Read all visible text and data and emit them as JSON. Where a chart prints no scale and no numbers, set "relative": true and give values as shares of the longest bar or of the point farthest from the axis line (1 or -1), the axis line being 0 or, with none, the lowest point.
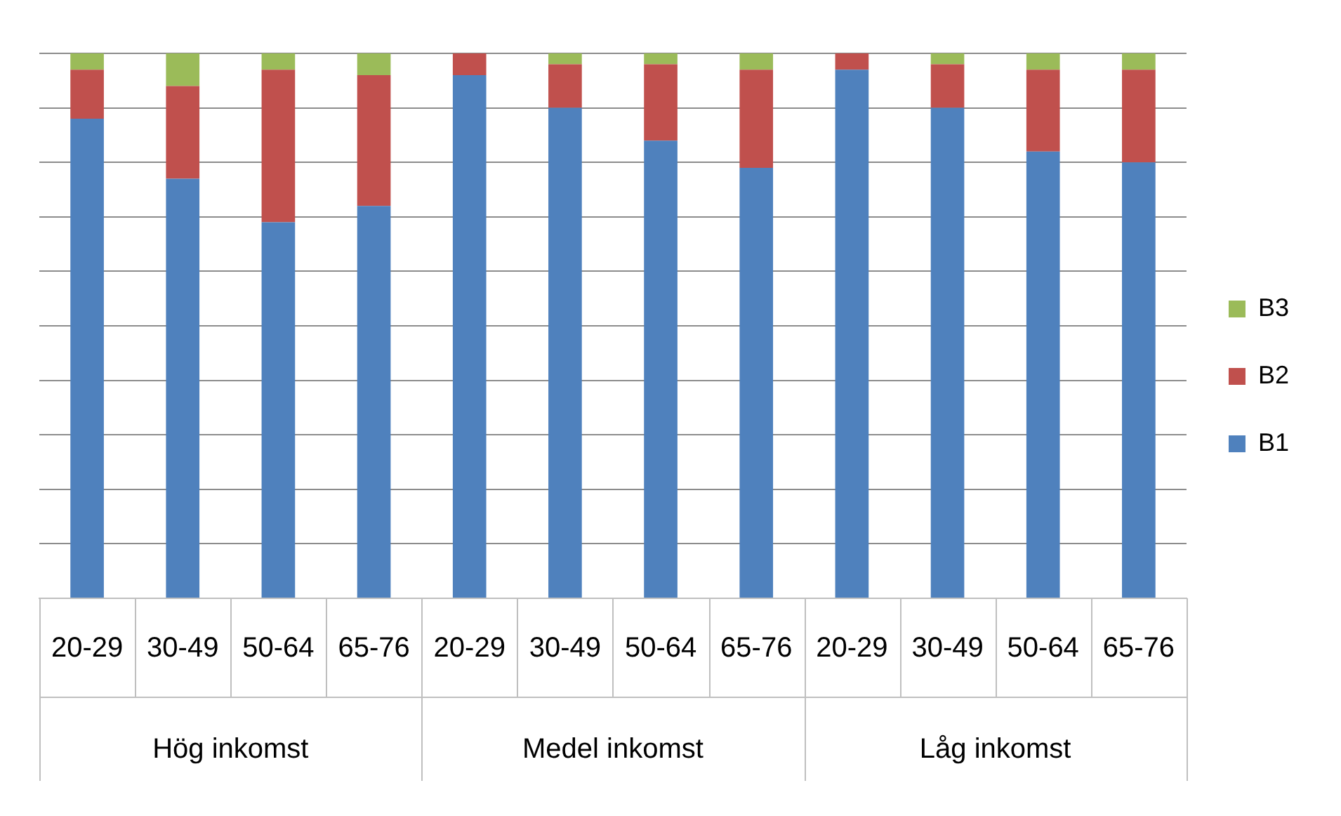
{
  "chart_data": {
    "type": "bar",
    "stacked": true,
    "relative": true,
    "grid": "y",
    "legend": "right",
    "categories": [
      "20-29",
      "30-49",
      "50-64",
      "65-76",
      "20-29",
      "30-49",
      "50-64",
      "65-76",
      "20-29",
      "30-49",
      "50-64",
      "65-76"
    ],
    "annotations": [
      "Hög inkomst",
      "Medel inkomst",
      "Låg inkomst"
    ],
    "series": [
      {
        "name": "B1",
        "color": "#4f81bd",
        "values": [
          0.88,
          0.77,
          0.69,
          0.72,
          0.96,
          0.9,
          0.84,
          0.79,
          0.97,
          0.9,
          0.82,
          0.8
        ]
      },
      {
        "name": "B2",
        "color": "#c0504d",
        "values": [
          0.09,
          0.17,
          0.28,
          0.24,
          0.04,
          0.08,
          0.14,
          0.18,
          0.03,
          0.08,
          0.15,
          0.17
        ]
      },
      {
        "name": "B3",
        "color": "#9bbb59",
        "values": [
          0.03,
          0.06,
          0.03,
          0.04,
          0,
          0.02,
          0.02,
          0.03,
          0,
          0.02,
          0.03,
          0.03
        ]
      }
    ]
  }
}
